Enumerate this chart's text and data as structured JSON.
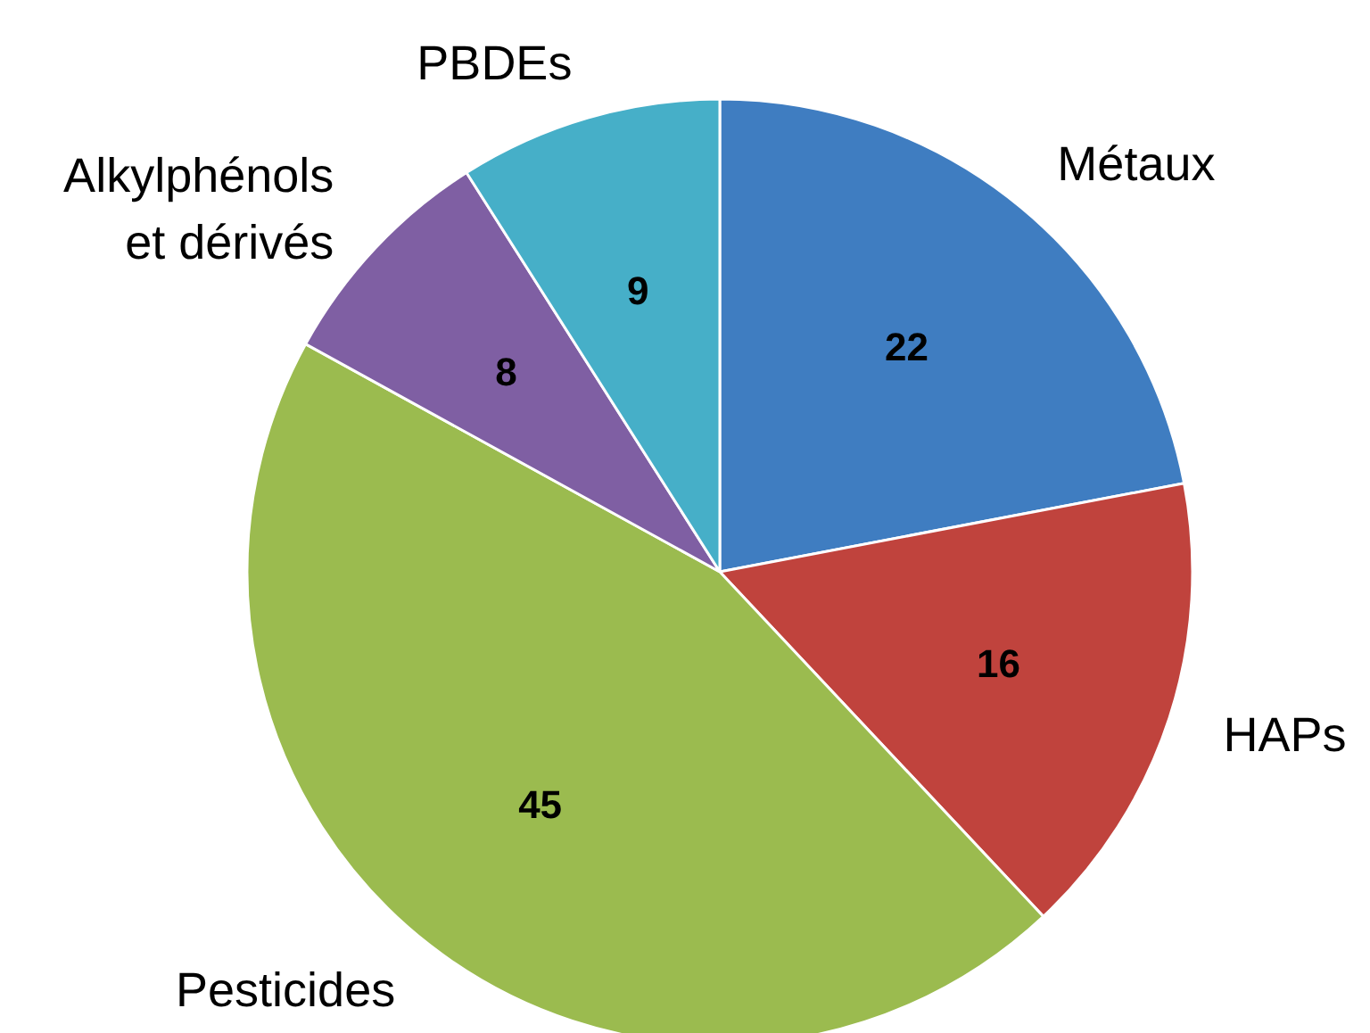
{
  "chart_data": {
    "type": "pie",
    "categories": [
      "Métaux",
      "HAPs",
      "Pesticides",
      "Alkylphénols\net dérivés",
      "PBDEs"
    ],
    "values": [
      22,
      16,
      45,
      8,
      9
    ],
    "colors": [
      "#3f7dc1",
      "#c0433d",
      "#9bbb4f",
      "#7f5fa3",
      "#46afc8"
    ],
    "data_labels": true
  }
}
